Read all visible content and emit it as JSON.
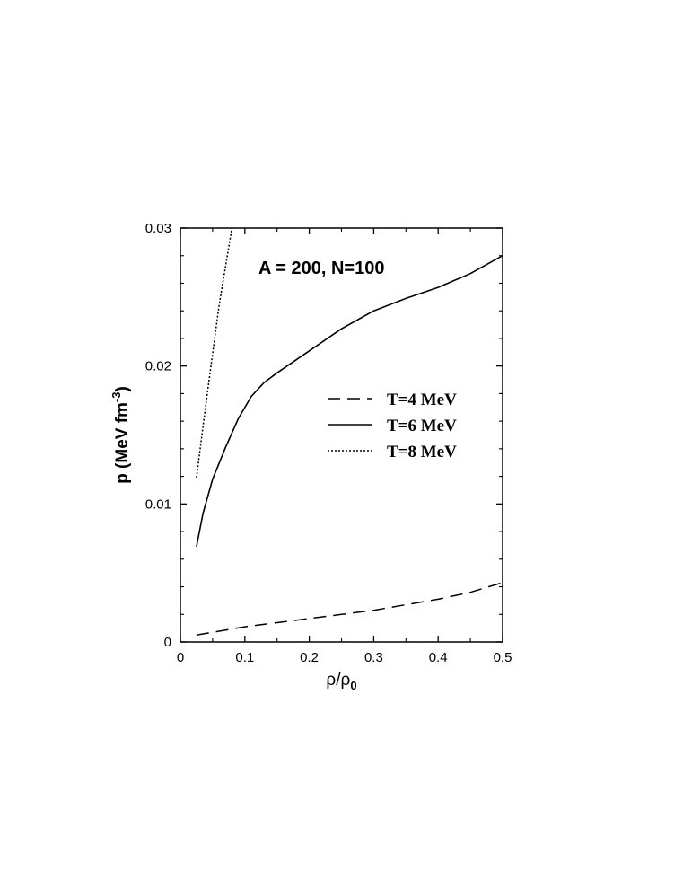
{
  "chart_data": {
    "type": "line",
    "title": "",
    "annotation": "A = 200,  N=100",
    "xlabel": {
      "main": "ρ/ρ",
      "sub": "0"
    },
    "ylabel": {
      "main": "p (MeV fm",
      "sup": "-3",
      "end": ")"
    },
    "xlim": [
      0,
      0.5
    ],
    "ylim": [
      0,
      0.03
    ],
    "xticks": [
      "0",
      "0.1",
      "0.2",
      "0.3",
      "0.4",
      "0.5"
    ],
    "yticks": [
      "0",
      "0.01",
      "0.02",
      "0.03"
    ],
    "grid": false,
    "legend_position": "center-right",
    "series": [
      {
        "name": "T=4 MeV",
        "style": "dashed",
        "color": "#000000",
        "x": [
          0.025,
          0.05,
          0.1,
          0.15,
          0.2,
          0.25,
          0.3,
          0.35,
          0.4,
          0.45,
          0.5
        ],
        "y": [
          0.0005,
          0.0007,
          0.0011,
          0.0014,
          0.0017,
          0.002,
          0.0023,
          0.0027,
          0.0031,
          0.0036,
          0.0043
        ]
      },
      {
        "name": "T=6 MeV",
        "style": "solid",
        "color": "#000000",
        "x": [
          0.025,
          0.035,
          0.05,
          0.07,
          0.09,
          0.11,
          0.13,
          0.15,
          0.2,
          0.25,
          0.3,
          0.35,
          0.4,
          0.45,
          0.5
        ],
        "y": [
          0.0069,
          0.0093,
          0.0118,
          0.0141,
          0.0162,
          0.0178,
          0.0188,
          0.0195,
          0.0211,
          0.0227,
          0.024,
          0.0249,
          0.0257,
          0.0267,
          0.028
        ]
      },
      {
        "name": "T=8 MeV",
        "style": "dotted",
        "color": "#000000",
        "x": [
          0.025,
          0.04,
          0.06,
          0.08
        ],
        "y": [
          0.0119,
          0.0174,
          0.0244,
          0.03
        ]
      }
    ]
  }
}
